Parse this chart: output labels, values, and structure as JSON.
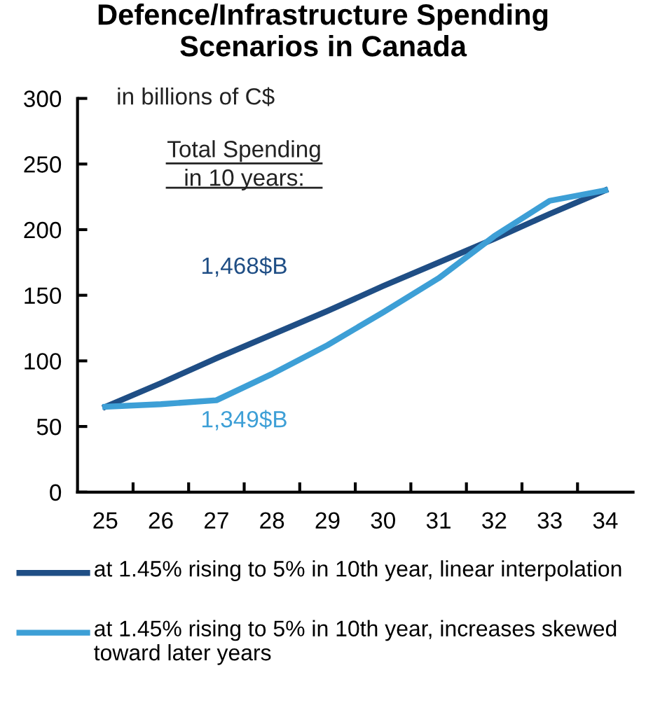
{
  "chart_data": {
    "type": "line",
    "title": "Defence/Infrastructure Spending\nScenarios in Canada",
    "categories": [
      "25",
      "26",
      "27",
      "28",
      "29",
      "30",
      "31",
      "32",
      "33",
      "34"
    ],
    "series": [
      {
        "name": "at 1.45% rising to 5% in 10th year, linear interpolation",
        "color": "#1f4e85",
        "values": [
          65,
          83,
          102,
          120,
          138,
          157,
          175,
          193,
          212,
          230
        ]
      },
      {
        "name": "at 1.45% rising to 5% in 10th year, increases skewed toward later years",
        "color": "#3d9fd6",
        "values": [
          65,
          67,
          70,
          90,
          112,
          137,
          163,
          195,
          222,
          230
        ]
      }
    ],
    "ylim": [
      0,
      300
    ],
    "yticks": [
      0,
      50,
      100,
      150,
      200,
      250,
      300
    ],
    "grid": false,
    "legend": "bottom",
    "marker": "none",
    "line_style": "solid",
    "annotations": [
      "in billions of C$",
      "Total Spending\nin 10 years:",
      "1,468$B",
      "1,349$B"
    ]
  }
}
